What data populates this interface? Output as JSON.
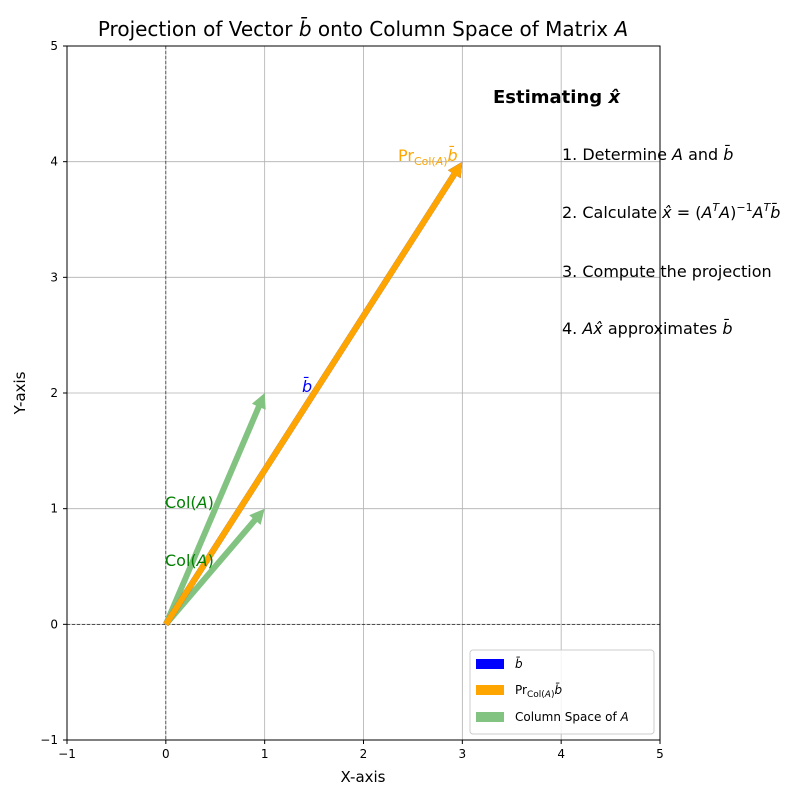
{
  "chart_data": {
    "type": "quiver",
    "title": "Projection of Vector b̄ onto Column Space of Matrix A",
    "xlabel": "X-axis",
    "ylabel": "Y-axis",
    "xlim": [
      -1,
      5
    ],
    "ylim": [
      -1,
      5
    ],
    "xticks": [
      "−1",
      "0",
      "1",
      "2",
      "3",
      "4",
      "5"
    ],
    "yticks": [
      "−1",
      "0",
      "1",
      "2",
      "3",
      "4",
      "5"
    ],
    "xtick_values": [
      -1,
      0,
      1,
      2,
      3,
      4,
      5
    ],
    "ytick_values": [
      -1,
      0,
      1,
      2,
      3,
      4,
      5
    ],
    "grid": true,
    "vectors": [
      {
        "name": "col1",
        "origin": [
          0,
          0
        ],
        "end": [
          1,
          1
        ],
        "color": "#82c382"
      },
      {
        "name": "col2",
        "origin": [
          0,
          0
        ],
        "end": [
          1,
          2
        ],
        "color": "#82c382"
      },
      {
        "name": "b",
        "origin": [
          0,
          0
        ],
        "end": [
          3,
          4
        ],
        "color": "#0000ff"
      },
      {
        "name": "proj",
        "origin": [
          0,
          0
        ],
        "end": [
          3,
          4
        ],
        "color": "#ffa500"
      }
    ],
    "annotations": [
      {
        "text": "Col(A)",
        "x": 0,
        "y": 0.5,
        "color": "#008000"
      },
      {
        "text": "Col(A)",
        "x": 0,
        "y": 1.0,
        "color": "#008000"
      },
      {
        "text": "b̄",
        "x": 1.4,
        "y": 2.0,
        "color": "#0000ff"
      },
      {
        "text": "Pr Col(A) b̄",
        "x": 3.0,
        "y": 4.0,
        "color": "#ffa500"
      }
    ],
    "steps_title": "Estimating x̂",
    "steps": [
      "1. Determine A and b̄",
      "2. Calculate x̂ = (AᵀA)⁻¹Aᵀb̄",
      "3. Compute the projection",
      "4. Ax̂ approximates b̄"
    ],
    "legend": {
      "placement": "lower-right",
      "entries": [
        {
          "label": "b̄",
          "color": "#0000ff"
        },
        {
          "label": "Pr Col(A) b̄",
          "color": "#ffa500"
        },
        {
          "label": "Column Space of A",
          "color": "#82c382"
        }
      ]
    }
  }
}
